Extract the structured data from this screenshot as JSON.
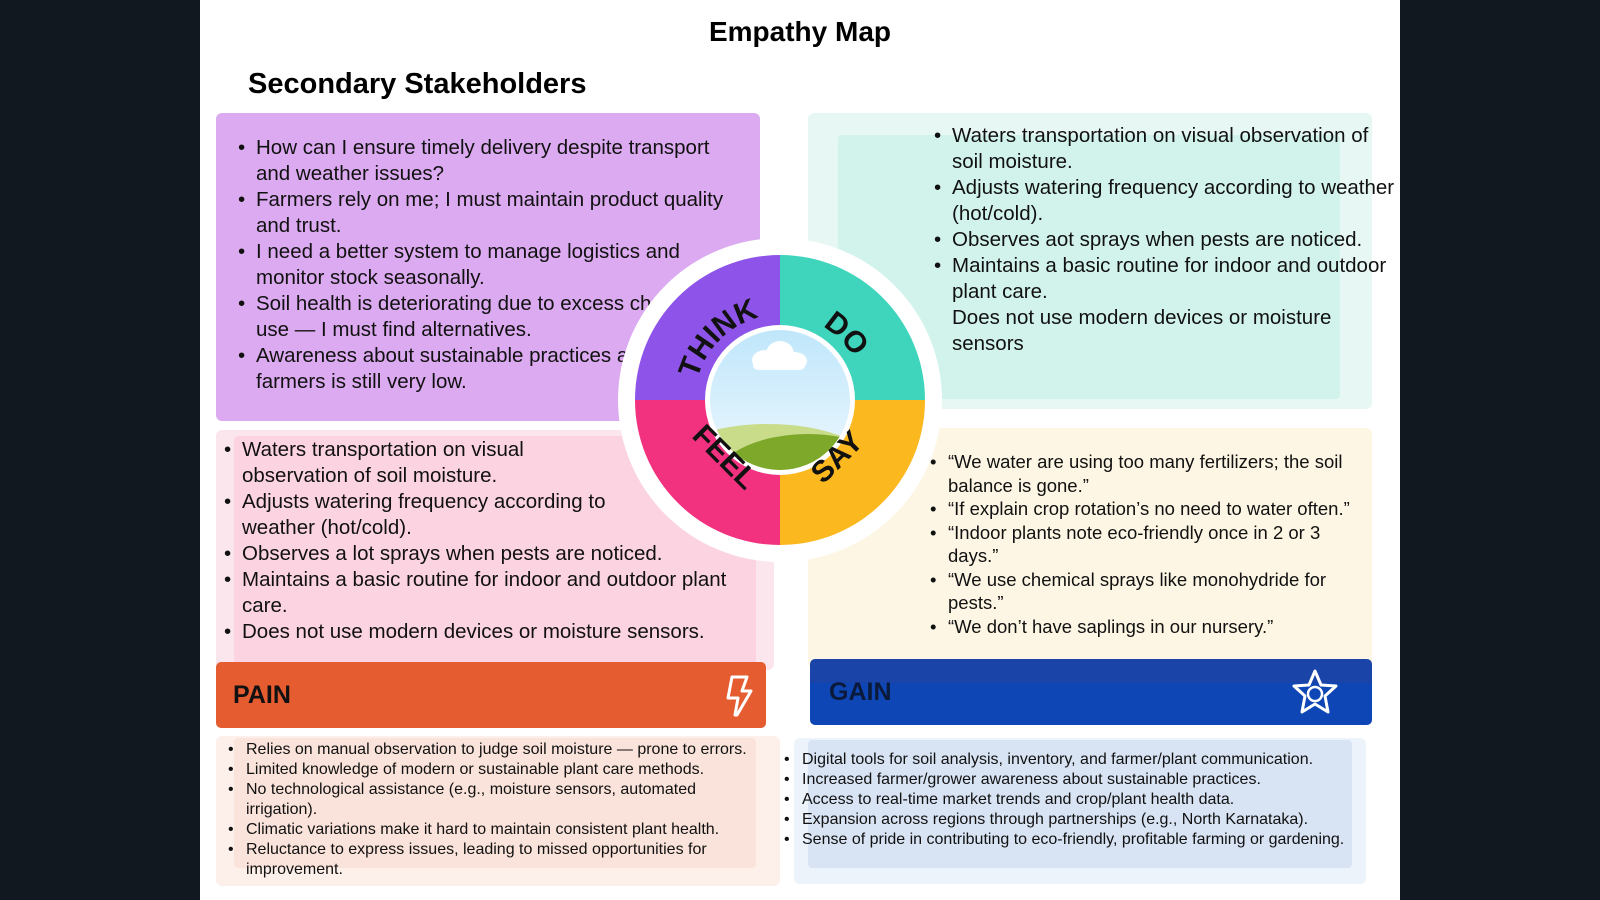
{
  "title": "Empathy Map",
  "subtitle": "Secondary Stakeholders",
  "wheel": {
    "think": "THINK",
    "do": "DO",
    "feel": "FEEL",
    "say": "SAY"
  },
  "think": {
    "items": [
      "How can I ensure timely delivery despite transport and weather issues?",
      "Farmers rely on me; I must maintain product quality and trust.",
      "I need a better system to manage logistics and monitor stock seasonally.",
      "Soil health is deteriorating due to excess chemical use — I must find alternatives.",
      "Awareness about sustainable practices among farmers is still very low."
    ]
  },
  "do": {
    "items": [
      "Waters transportation on visual observation of soil moisture.",
      "Adjusts watering frequency according to weather (hot/cold).",
      "Observes aot sprays when pests are noticed.",
      "Maintains a basic routine for indoor and outdoor plant care.",
      "Does not use modern devices or moisture sensors"
    ]
  },
  "feel": {
    "items": [
      "Waters transportation on visual observation of soil moisture.",
      "Adjusts watering frequency according to weather (hot/cold).",
      "Observes a lot sprays when pests are noticed.",
      "Maintains a basic routine for indoor and outdoor plant care.",
      "Does not use modern devices or moisture sensors."
    ]
  },
  "say": {
    "items": [
      "“We water are using too many fertilizers; the soil balance is gone.”",
      "“If explain crop rotation’s no need to water often.”",
      "“Indoor plants note eco-friendly once in 2 or 3 days.”",
      "“We use chemical sprays like monohydride for pests.”",
      "“We don’t have saplings in our nursery.”"
    ]
  },
  "pain": {
    "label": "PAIN",
    "icon": "lightning-hand-icon",
    "items": [
      "Relies on manual observation to judge soil moisture — prone to errors.",
      "Limited knowledge of modern or sustainable plant care methods.",
      "No technological assistance (e.g., moisture sensors, automated irrigation).",
      "Climatic variations make it hard to maintain consistent plant health.",
      "Reluctance to express issues, leading to missed opportunities for improvement."
    ]
  },
  "gain": {
    "label": "GAIN",
    "icon": "star-badge-icon",
    "items": [
      "Digital tools for soil analysis, inventory, and farmer/plant communication.",
      "Increased farmer/grower awareness about sustainable practices.",
      "Access to real-time market trends and crop/plant health data.",
      "Expansion across regions through partnerships (e.g., North Karnataka).",
      "Sense of pride in contributing to eco-friendly, profitable farming or gardening."
    ]
  },
  "colors": {
    "think": "#8e54e9",
    "do": "#3fd4bc",
    "feel": "#f2317f",
    "say": "#fbb81f",
    "pain": "#e65c31",
    "gain": "#0e47b5"
  }
}
